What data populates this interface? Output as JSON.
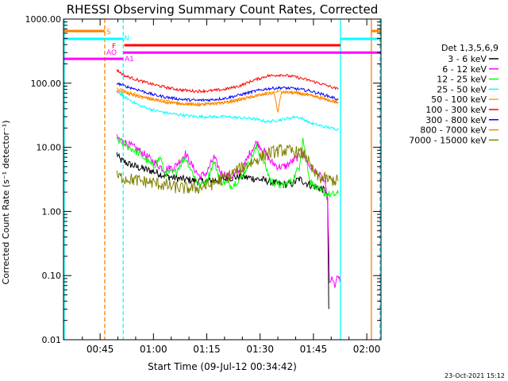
{
  "chart_data": {
    "type": "line",
    "title": "RHESSI Observing Summary Count Rates, Corrected",
    "xlabel": "Start Time (09-Jul-12 00:34:42)",
    "ylabel": "Corrected Count Rate (s⁻¹ detector⁻¹)",
    "y_scale": "log",
    "ylim": [
      0.01,
      1000
    ],
    "x_unit": "minutes of day (UT)",
    "xlim": [
      34.7,
      124.0
    ],
    "x_ticks": [
      {
        "value": 45,
        "label": "00:45"
      },
      {
        "value": 60,
        "label": "01:00"
      },
      {
        "value": 75,
        "label": "01:15"
      },
      {
        "value": 90,
        "label": "01:30"
      },
      {
        "value": 105,
        "label": "01:45"
      },
      {
        "value": 120,
        "label": "02:00"
      }
    ],
    "y_ticks": [
      {
        "value": 1000,
        "label": "1000.00"
      },
      {
        "value": 100,
        "label": "100.00"
      },
      {
        "value": 10,
        "label": "10.00"
      },
      {
        "value": 1,
        "label": "1.00"
      },
      {
        "value": 0.1,
        "label": "0.10"
      },
      {
        "value": 0.01,
        "label": "0.01"
      }
    ],
    "legend_title": "Det 1,3,5,6,9",
    "legend_position": "right",
    "series": [
      {
        "name": "3 - 6 keV",
        "color": "#000000",
        "points": [
          [
            49.7,
            8.0
          ],
          [
            50.5,
            6.5
          ],
          [
            53,
            5.5
          ],
          [
            56,
            4.8
          ],
          [
            60,
            4.2
          ],
          [
            64,
            3.5
          ],
          [
            68,
            3.2
          ],
          [
            72,
            3.0
          ],
          [
            76,
            3.0
          ],
          [
            80,
            3.2
          ],
          [
            84,
            3.5
          ],
          [
            88,
            3.3
          ],
          [
            92,
            3.0
          ],
          [
            96,
            2.6
          ],
          [
            99,
            2.7
          ],
          [
            101,
            3.2
          ],
          [
            104,
            2.6
          ],
          [
            107,
            2.3
          ],
          [
            108.5,
            2.1
          ],
          [
            109,
            1.5
          ],
          [
            109.3,
            0.03
          ]
        ]
      },
      {
        "name": "6 - 12 keV",
        "color": "#ff00ff",
        "points": [
          [
            49.7,
            14
          ],
          [
            52,
            12
          ],
          [
            56,
            9
          ],
          [
            60,
            6
          ],
          [
            63,
            4.5
          ],
          [
            66,
            5
          ],
          [
            69,
            8
          ],
          [
            71,
            5
          ],
          [
            73,
            3.5
          ],
          [
            75,
            4
          ],
          [
            77,
            7
          ],
          [
            79,
            4
          ],
          [
            82,
            3.5
          ],
          [
            85,
            4.5
          ],
          [
            87,
            8
          ],
          [
            89,
            12
          ],
          [
            91,
            9
          ],
          [
            93,
            6
          ],
          [
            95,
            5
          ],
          [
            97,
            5
          ],
          [
            99,
            6
          ],
          [
            102,
            8
          ],
          [
            104,
            5
          ],
          [
            106,
            4
          ],
          [
            108,
            3
          ],
          [
            109,
            1.5
          ],
          [
            109.3,
            0.3
          ],
          [
            109.5,
            0.07
          ],
          [
            110,
            0.09
          ],
          [
            111,
            0.07
          ],
          [
            112,
            0.1
          ],
          [
            112.5,
            0.08
          ]
        ]
      },
      {
        "name": "12 - 25 keV",
        "color": "#00ff00",
        "points": [
          [
            49.7,
            13
          ],
          [
            52,
            11
          ],
          [
            56,
            8
          ],
          [
            60,
            5
          ],
          [
            62,
            7
          ],
          [
            63,
            4
          ],
          [
            66,
            4
          ],
          [
            69,
            7
          ],
          [
            71,
            4
          ],
          [
            73,
            2.5
          ],
          [
            75,
            3
          ],
          [
            77,
            6
          ],
          [
            79,
            3
          ],
          [
            82,
            2.5
          ],
          [
            85,
            3.5
          ],
          [
            87,
            6
          ],
          [
            89,
            10
          ],
          [
            91,
            6
          ],
          [
            93,
            3
          ],
          [
            96,
            2.5
          ],
          [
            99,
            3
          ],
          [
            101,
            5
          ],
          [
            102,
            14
          ],
          [
            103,
            7
          ],
          [
            104,
            3
          ],
          [
            107,
            2
          ],
          [
            110,
            1.8
          ],
          [
            112,
            1.9
          ]
        ]
      },
      {
        "name": "25 - 50 keV",
        "color": "#00ffff",
        "points": [
          [
            49.7,
            75
          ],
          [
            52,
            60
          ],
          [
            56,
            45
          ],
          [
            60,
            38
          ],
          [
            64,
            34
          ],
          [
            68,
            32
          ],
          [
            72,
            30
          ],
          [
            76,
            30
          ],
          [
            80,
            30
          ],
          [
            84,
            29
          ],
          [
            88,
            28
          ],
          [
            92,
            25
          ],
          [
            96,
            27
          ],
          [
            100,
            30
          ],
          [
            102,
            28
          ],
          [
            104,
            24
          ],
          [
            108,
            21
          ],
          [
            112,
            19
          ]
        ]
      },
      {
        "name": "50 - 100 keV",
        "color": "#ffa500",
        "points": [
          [
            49.7,
            85
          ],
          [
            52,
            75
          ],
          [
            56,
            65
          ],
          [
            60,
            56
          ],
          [
            64,
            52
          ],
          [
            68,
            48
          ],
          [
            72,
            47
          ],
          [
            76,
            48
          ],
          [
            80,
            50
          ],
          [
            84,
            56
          ],
          [
            88,
            62
          ],
          [
            92,
            70
          ],
          [
            96,
            75
          ],
          [
            100,
            72
          ],
          [
            104,
            66
          ],
          [
            108,
            58
          ],
          [
            112,
            50
          ]
        ]
      },
      {
        "name": "100 - 300 keV",
        "color": "#ff0000",
        "points": [
          [
            49.7,
            160
          ],
          [
            52,
            130
          ],
          [
            56,
            110
          ],
          [
            60,
            95
          ],
          [
            64,
            85
          ],
          [
            68,
            78
          ],
          [
            72,
            75
          ],
          [
            76,
            76
          ],
          [
            80,
            80
          ],
          [
            84,
            90
          ],
          [
            88,
            110
          ],
          [
            92,
            130
          ],
          [
            96,
            135
          ],
          [
            100,
            125
          ],
          [
            104,
            110
          ],
          [
            108,
            95
          ],
          [
            112,
            80
          ]
        ]
      },
      {
        "name": "300 - 800 keV",
        "color": "#0000ff",
        "points": [
          [
            49.7,
            100
          ],
          [
            52,
            90
          ],
          [
            56,
            78
          ],
          [
            60,
            66
          ],
          [
            64,
            60
          ],
          [
            68,
            56
          ],
          [
            72,
            54
          ],
          [
            76,
            55
          ],
          [
            80,
            58
          ],
          [
            84,
            65
          ],
          [
            88,
            74
          ],
          [
            92,
            82
          ],
          [
            96,
            85
          ],
          [
            100,
            82
          ],
          [
            104,
            76
          ],
          [
            108,
            66
          ],
          [
            112,
            56
          ]
        ]
      },
      {
        "name": "800 - 7000 keV",
        "color": "#ff7f00",
        "points": [
          [
            49.7,
            75
          ],
          [
            52,
            70
          ],
          [
            56,
            62
          ],
          [
            60,
            55
          ],
          [
            64,
            50
          ],
          [
            68,
            48
          ],
          [
            72,
            46
          ],
          [
            76,
            47
          ],
          [
            80,
            50
          ],
          [
            84,
            54
          ],
          [
            88,
            62
          ],
          [
            92,
            68
          ],
          [
            94,
            70
          ],
          [
            95,
            35
          ],
          [
            96,
            72
          ],
          [
            100,
            70
          ],
          [
            104,
            64
          ],
          [
            108,
            56
          ],
          [
            112,
            50
          ]
        ]
      },
      {
        "name": "7000 - 15000 keV",
        "color": "#808000",
        "points": [
          [
            49.7,
            3.5
          ],
          [
            52,
            3.3
          ],
          [
            56,
            3.0
          ],
          [
            60,
            2.8
          ],
          [
            64,
            2.5
          ],
          [
            68,
            2.3
          ],
          [
            72,
            2.3
          ],
          [
            76,
            2.6
          ],
          [
            80,
            3.3
          ],
          [
            84,
            4.5
          ],
          [
            88,
            6
          ],
          [
            92,
            8
          ],
          [
            96,
            9
          ],
          [
            100,
            8.5
          ],
          [
            103,
            7.5
          ],
          [
            104,
            5
          ],
          [
            106,
            3.5
          ],
          [
            108,
            3.2
          ],
          [
            112,
            3.0
          ]
        ]
      }
    ],
    "annotations": [
      {
        "label": "S",
        "color": "#ff7f00",
        "y": 650,
        "segments": [
          [
            34.7,
            46.3
          ],
          [
            121.3,
            124.0
          ]
        ]
      },
      {
        "label": "N",
        "color": "#00ffff",
        "y": 490,
        "segments": [
          [
            34.7,
            51.5
          ],
          [
            112.6,
            124.0
          ]
        ]
      },
      {
        "label": "F",
        "color": "#ff0000",
        "y": 390,
        "segments": [
          [
            51.8,
            112.6
          ]
        ]
      },
      {
        "label": "AO",
        "color": "#ff00ff",
        "y": 300,
        "segments": [
          [
            51.5,
            124.0
          ]
        ]
      },
      {
        "label": "A1",
        "color": "#ff00ff",
        "y": 240,
        "segments": [
          [
            34.7,
            51.5
          ]
        ]
      }
    ],
    "vertical_lines": [
      {
        "x": 34.9,
        "color": "#00ffff",
        "dashed": false
      },
      {
        "x": 46.3,
        "color": "#ff7f00",
        "dashed": true
      },
      {
        "x": 51.5,
        "color": "#00ffff",
        "dashed": true
      },
      {
        "x": 112.6,
        "color": "#00ffff",
        "dashed": false
      },
      {
        "x": 121.3,
        "color": "#ff7f00",
        "dashed": false
      },
      {
        "x": 123.7,
        "color": "#00ffff",
        "dashed": true
      }
    ]
  },
  "footer": {
    "date_stamp": "23-Oct-2021 15:12"
  }
}
